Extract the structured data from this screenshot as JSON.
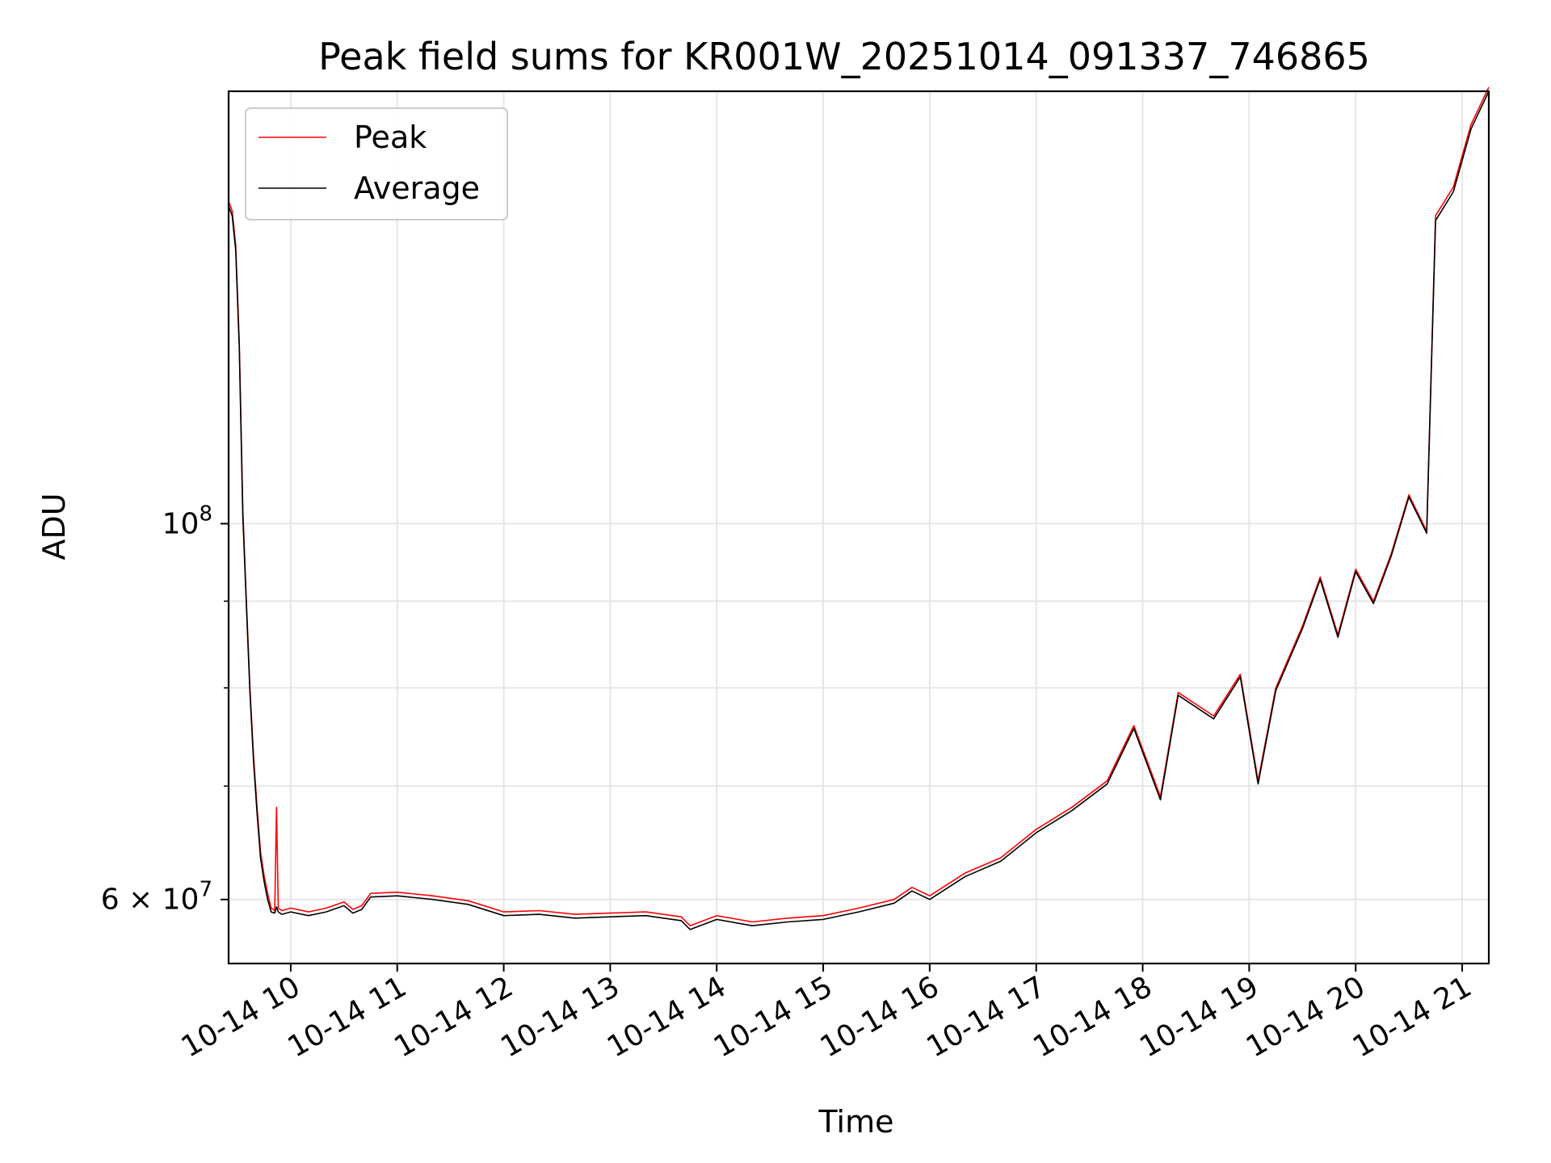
{
  "chart_data": {
    "type": "line",
    "title": "Peak field sums for KR001W_20251014_091337_746865",
    "xlabel": "Time",
    "ylabel": "ADU",
    "y_scale": "log",
    "ylim": [
      55000000,
      180000000
    ],
    "xlim": [
      "2025-10-14 09:25",
      "2025-10-14 21:15"
    ],
    "x_ticks": [
      {
        "t": "2025-10-14 10:00",
        "label": "10-14 10"
      },
      {
        "t": "2025-10-14 11:00",
        "label": "10-14 11"
      },
      {
        "t": "2025-10-14 12:00",
        "label": "10-14 12"
      },
      {
        "t": "2025-10-14 13:00",
        "label": "10-14 13"
      },
      {
        "t": "2025-10-14 14:00",
        "label": "10-14 14"
      },
      {
        "t": "2025-10-14 15:00",
        "label": "10-14 15"
      },
      {
        "t": "2025-10-14 16:00",
        "label": "10-14 16"
      },
      {
        "t": "2025-10-14 17:00",
        "label": "10-14 17"
      },
      {
        "t": "2025-10-14 18:00",
        "label": "10-14 18"
      },
      {
        "t": "2025-10-14 19:00",
        "label": "10-14 19"
      },
      {
        "t": "2025-10-14 20:00",
        "label": "10-14 20"
      },
      {
        "t": "2025-10-14 21:00",
        "label": "10-14 21"
      }
    ],
    "y_major_ticks": [
      {
        "v": 60000000,
        "label_base": "6 × 10",
        "label_exp": "7"
      },
      {
        "v": 100000000,
        "label_base": "10",
        "label_exp": "8"
      }
    ],
    "y_minor_ticks": [
      70000000,
      80000000,
      90000000
    ],
    "grid": true,
    "legend_position": "top-left",
    "series": [
      {
        "name": "Peak",
        "color": "#ff0000",
        "points": [
          [
            "2025-10-14 09:25",
            155000000
          ],
          [
            "2025-10-14 09:27",
            153000000
          ],
          [
            "2025-10-14 09:29",
            146000000
          ],
          [
            "2025-10-14 09:31",
            128000000
          ],
          [
            "2025-10-14 09:33",
            102000000
          ],
          [
            "2025-10-14 09:35",
            90000000
          ],
          [
            "2025-10-14 09:37",
            80000000
          ],
          [
            "2025-10-14 09:39",
            73000000
          ],
          [
            "2025-10-14 09:41",
            68000000
          ],
          [
            "2025-10-14 09:43",
            64000000
          ],
          [
            "2025-10-14 09:45",
            62000000
          ],
          [
            "2025-10-14 09:47",
            60500000
          ],
          [
            "2025-10-14 09:49",
            59300000
          ],
          [
            "2025-10-14 09:51",
            59100000
          ],
          [
            "2025-10-14 09:52",
            68000000
          ],
          [
            "2025-10-14 09:53",
            59300000
          ],
          [
            "2025-10-14 09:55",
            59100000
          ],
          [
            "2025-10-14 10:00",
            59300000
          ],
          [
            "2025-10-14 10:10",
            59000000
          ],
          [
            "2025-10-14 10:20",
            59300000
          ],
          [
            "2025-10-14 10:30",
            59800000
          ],
          [
            "2025-10-14 10:35",
            59200000
          ],
          [
            "2025-10-14 10:40",
            59500000
          ],
          [
            "2025-10-14 10:45",
            60500000
          ],
          [
            "2025-10-14 11:00",
            60600000
          ],
          [
            "2025-10-14 11:20",
            60300000
          ],
          [
            "2025-10-14 11:40",
            59900000
          ],
          [
            "2025-10-14 12:00",
            59000000
          ],
          [
            "2025-10-14 12:20",
            59100000
          ],
          [
            "2025-10-14 12:40",
            58800000
          ],
          [
            "2025-10-14 13:00",
            58900000
          ],
          [
            "2025-10-14 13:20",
            59000000
          ],
          [
            "2025-10-14 13:40",
            58600000
          ],
          [
            "2025-10-14 13:45",
            57900000
          ],
          [
            "2025-10-14 14:00",
            58700000
          ],
          [
            "2025-10-14 14:20",
            58200000
          ],
          [
            "2025-10-14 14:40",
            58500000
          ],
          [
            "2025-10-14 15:00",
            58700000
          ],
          [
            "2025-10-14 15:20",
            59300000
          ],
          [
            "2025-10-14 15:40",
            60000000
          ],
          [
            "2025-10-14 15:50",
            61000000
          ],
          [
            "2025-10-14 16:00",
            60300000
          ],
          [
            "2025-10-14 16:20",
            62200000
          ],
          [
            "2025-10-14 16:40",
            63500000
          ],
          [
            "2025-10-14 17:00",
            66000000
          ],
          [
            "2025-10-14 17:20",
            68000000
          ],
          [
            "2025-10-14 17:40",
            70500000
          ],
          [
            "2025-10-14 17:55",
            76000000
          ],
          [
            "2025-10-14 18:10",
            69000000
          ],
          [
            "2025-10-14 18:20",
            79500000
          ],
          [
            "2025-10-14 18:40",
            77000000
          ],
          [
            "2025-10-14 18:55",
            81500000
          ],
          [
            "2025-10-14 19:05",
            70500000
          ],
          [
            "2025-10-14 19:15",
            80000000
          ],
          [
            "2025-10-14 19:30",
            87000000
          ],
          [
            "2025-10-14 19:40",
            93000000
          ],
          [
            "2025-10-14 19:50",
            86000000
          ],
          [
            "2025-10-14 20:00",
            94000000
          ],
          [
            "2025-10-14 20:10",
            90000000
          ],
          [
            "2025-10-14 20:20",
            96000000
          ],
          [
            "2025-10-14 20:30",
            104000000
          ],
          [
            "2025-10-14 20:40",
            99000000
          ],
          [
            "2025-10-14 20:45",
            152000000
          ],
          [
            "2025-10-14 20:55",
            158000000
          ],
          [
            "2025-10-14 21:05",
            172000000
          ],
          [
            "2025-10-14 21:15",
            181000000
          ]
        ]
      },
      {
        "name": "Average",
        "color": "#000000",
        "points": [
          [
            "2025-10-14 09:25",
            154000000
          ],
          [
            "2025-10-14 09:27",
            152000000
          ],
          [
            "2025-10-14 09:29",
            145000000
          ],
          [
            "2025-10-14 09:31",
            127000000
          ],
          [
            "2025-10-14 09:33",
            101000000
          ],
          [
            "2025-10-14 09:35",
            89500000
          ],
          [
            "2025-10-14 09:37",
            79500000
          ],
          [
            "2025-10-14 09:39",
            72500000
          ],
          [
            "2025-10-14 09:41",
            67500000
          ],
          [
            "2025-10-14 09:43",
            63500000
          ],
          [
            "2025-10-14 09:45",
            61500000
          ],
          [
            "2025-10-14 09:47",
            60000000
          ],
          [
            "2025-10-14 09:49",
            59000000
          ],
          [
            "2025-10-14 09:51",
            58900000
          ],
          [
            "2025-10-14 09:52",
            59400000
          ],
          [
            "2025-10-14 09:53",
            59000000
          ],
          [
            "2025-10-14 09:55",
            58800000
          ],
          [
            "2025-10-14 10:00",
            59000000
          ],
          [
            "2025-10-14 10:10",
            58700000
          ],
          [
            "2025-10-14 10:20",
            59000000
          ],
          [
            "2025-10-14 10:30",
            59500000
          ],
          [
            "2025-10-14 10:35",
            58900000
          ],
          [
            "2025-10-14 10:40",
            59200000
          ],
          [
            "2025-10-14 10:45",
            60200000
          ],
          [
            "2025-10-14 11:00",
            60300000
          ],
          [
            "2025-10-14 11:20",
            60000000
          ],
          [
            "2025-10-14 11:40",
            59600000
          ],
          [
            "2025-10-14 12:00",
            58700000
          ],
          [
            "2025-10-14 12:20",
            58800000
          ],
          [
            "2025-10-14 12:40",
            58500000
          ],
          [
            "2025-10-14 13:00",
            58600000
          ],
          [
            "2025-10-14 13:20",
            58700000
          ],
          [
            "2025-10-14 13:40",
            58300000
          ],
          [
            "2025-10-14 13:45",
            57600000
          ],
          [
            "2025-10-14 14:00",
            58400000
          ],
          [
            "2025-10-14 14:20",
            57900000
          ],
          [
            "2025-10-14 14:40",
            58200000
          ],
          [
            "2025-10-14 15:00",
            58400000
          ],
          [
            "2025-10-14 15:20",
            59000000
          ],
          [
            "2025-10-14 15:40",
            59700000
          ],
          [
            "2025-10-14 15:50",
            60700000
          ],
          [
            "2025-10-14 16:00",
            60000000
          ],
          [
            "2025-10-14 16:20",
            61900000
          ],
          [
            "2025-10-14 16:40",
            63200000
          ],
          [
            "2025-10-14 17:00",
            65700000
          ],
          [
            "2025-10-14 17:20",
            67700000
          ],
          [
            "2025-10-14 17:40",
            70200000
          ],
          [
            "2025-10-14 17:55",
            75700000
          ],
          [
            "2025-10-14 18:10",
            68700000
          ],
          [
            "2025-10-14 18:20",
            79200000
          ],
          [
            "2025-10-14 18:40",
            76700000
          ],
          [
            "2025-10-14 18:55",
            81200000
          ],
          [
            "2025-10-14 19:05",
            70200000
          ],
          [
            "2025-10-14 19:15",
            79700000
          ],
          [
            "2025-10-14 19:30",
            86700000
          ],
          [
            "2025-10-14 19:40",
            92700000
          ],
          [
            "2025-10-14 19:50",
            85700000
          ],
          [
            "2025-10-14 20:00",
            93700000
          ],
          [
            "2025-10-14 20:10",
            89700000
          ],
          [
            "2025-10-14 20:20",
            95700000
          ],
          [
            "2025-10-14 20:30",
            103700000
          ],
          [
            "2025-10-14 20:40",
            98700000
          ],
          [
            "2025-10-14 20:45",
            151000000
          ],
          [
            "2025-10-14 20:55",
            157000000
          ],
          [
            "2025-10-14 21:05",
            171000000
          ],
          [
            "2025-10-14 21:15",
            180000000
          ]
        ]
      }
    ]
  }
}
